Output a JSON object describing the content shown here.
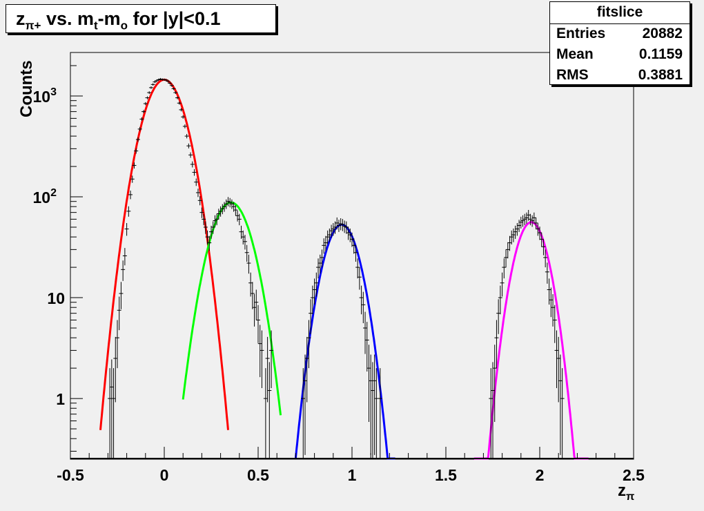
{
  "header": {
    "title_parts": {
      "z": "z",
      "z_sub": "π+",
      "vs": " vs. m",
      "m_sub": "t",
      "dash": "-m",
      "m2_sub": "o",
      "rest": " for |y|<0.1"
    }
  },
  "stats": {
    "name": "fitslice",
    "rows": [
      {
        "label": "Entries",
        "value": "20882"
      },
      {
        "label": "Mean",
        "value": "0.1159"
      },
      {
        "label": "RMS",
        "value": "0.3881"
      }
    ]
  },
  "chart_data": {
    "type": "scatter",
    "xlabel_main": "z",
    "xlabel_sub": "π",
    "ylabel": "Counts",
    "xlim": [
      -0.5,
      2.5
    ],
    "ylim": [
      0.25,
      2700
    ],
    "yscale": "log",
    "grid": false,
    "x_ticks": [
      {
        "v": -0.5,
        "label": "-0.5"
      },
      {
        "v": 0,
        "label": "0"
      },
      {
        "v": 0.5,
        "label": "0.5"
      },
      {
        "v": 1,
        "label": "1"
      },
      {
        "v": 1.5,
        "label": "1.5"
      },
      {
        "v": 2,
        "label": "2"
      },
      {
        "v": 2.5,
        "label": "2.5"
      }
    ],
    "y_ticks": [
      {
        "v": 1,
        "label": "1"
      },
      {
        "v": 10,
        "label": "10"
      },
      {
        "v": 100,
        "label": "10",
        "exp": "2"
      },
      {
        "v": 1000,
        "label": "10",
        "exp": "3"
      }
    ],
    "fits": [
      {
        "color": "#ff0000",
        "amp": 1450,
        "mean": 0.0,
        "sigma": 0.085,
        "xmin": -0.34,
        "xmax": 0.34
      },
      {
        "color": "#00ff00",
        "amp": 88,
        "mean": 0.355,
        "sigma": 0.085,
        "xmin": 0.1,
        "xmax": 0.62
      },
      {
        "color": "#0000ff",
        "amp": 53,
        "mean": 0.945,
        "sigma": 0.075,
        "xmin": 0.7,
        "xmax": 1.23
      },
      {
        "color": "#ff00ff",
        "amp": 56,
        "mean": 1.955,
        "sigma": 0.07,
        "xmin": 1.65,
        "xmax": 2.26
      }
    ],
    "points": [
      [
        -0.29,
        1.0
      ],
      [
        -0.28,
        1.3
      ],
      [
        -0.27,
        1.0
      ],
      [
        -0.26,
        2.5
      ],
      [
        -0.25,
        4.0
      ],
      [
        -0.24,
        7.5
      ],
      [
        -0.23,
        11
      ],
      [
        -0.22,
        19
      ],
      [
        -0.21,
        26
      ],
      [
        -0.2,
        48
      ],
      [
        -0.19,
        72
      ],
      [
        -0.18,
        105
      ],
      [
        -0.17,
        150
      ],
      [
        -0.16,
        205
      ],
      [
        -0.15,
        285
      ],
      [
        -0.14,
        370
      ],
      [
        -0.13,
        470
      ],
      [
        -0.12,
        590
      ],
      [
        -0.11,
        700
      ],
      [
        -0.1,
        840
      ],
      [
        -0.09,
        960
      ],
      [
        -0.08,
        1080
      ],
      [
        -0.07,
        1210
      ],
      [
        -0.06,
        1300
      ],
      [
        -0.05,
        1380
      ],
      [
        -0.04,
        1420
      ],
      [
        -0.03,
        1450
      ],
      [
        -0.02,
        1470
      ],
      [
        -0.01,
        1455
      ],
      [
        0.0,
        1450
      ],
      [
        0.01,
        1440
      ],
      [
        0.02,
        1400
      ],
      [
        0.03,
        1340
      ],
      [
        0.04,
        1270
      ],
      [
        0.05,
        1180
      ],
      [
        0.06,
        1080
      ],
      [
        0.07,
        960
      ],
      [
        0.08,
        850
      ],
      [
        0.09,
        730
      ],
      [
        0.1,
        620
      ],
      [
        0.11,
        500
      ],
      [
        0.12,
        400
      ],
      [
        0.13,
        320
      ],
      [
        0.14,
        260
      ],
      [
        0.15,
        210
      ],
      [
        0.16,
        175
      ],
      [
        0.17,
        140
      ],
      [
        0.18,
        110
      ],
      [
        0.19,
        92
      ],
      [
        0.2,
        70
      ],
      [
        0.21,
        60
      ],
      [
        0.22,
        50
      ],
      [
        0.23,
        40
      ],
      [
        0.24,
        35
      ],
      [
        0.25,
        45
      ],
      [
        0.26,
        50
      ],
      [
        0.27,
        58
      ],
      [
        0.28,
        60
      ],
      [
        0.29,
        68
      ],
      [
        0.3,
        72
      ],
      [
        0.31,
        76
      ],
      [
        0.32,
        80
      ],
      [
        0.33,
        85
      ],
      [
        0.34,
        90
      ],
      [
        0.35,
        88
      ],
      [
        0.36,
        85
      ],
      [
        0.37,
        80
      ],
      [
        0.38,
        74
      ],
      [
        0.39,
        65
      ],
      [
        0.4,
        60
      ],
      [
        0.41,
        45
      ],
      [
        0.42,
        40
      ],
      [
        0.43,
        36
      ],
      [
        0.44,
        28
      ],
      [
        0.45,
        22
      ],
      [
        0.46,
        14
      ],
      [
        0.47,
        11
      ],
      [
        0.48,
        8
      ],
      [
        0.49,
        9
      ],
      [
        0.5,
        6
      ],
      [
        0.51,
        3.5
      ],
      [
        0.52,
        3.0
      ],
      [
        0.54,
        1.0
      ],
      [
        0.55,
        2.5
      ],
      [
        0.56,
        1.2
      ],
      [
        0.57,
        3.0
      ],
      [
        0.74,
        1.0
      ],
      [
        0.75,
        1.5
      ],
      [
        0.76,
        2.5
      ],
      [
        0.77,
        4.0
      ],
      [
        0.78,
        7.0
      ],
      [
        0.79,
        10
      ],
      [
        0.8,
        12
      ],
      [
        0.81,
        14
      ],
      [
        0.82,
        20
      ],
      [
        0.83,
        22
      ],
      [
        0.84,
        25
      ],
      [
        0.85,
        33
      ],
      [
        0.86,
        35
      ],
      [
        0.87,
        40
      ],
      [
        0.88,
        42
      ],
      [
        0.89,
        46
      ],
      [
        0.9,
        48
      ],
      [
        0.91,
        50
      ],
      [
        0.92,
        55
      ],
      [
        0.93,
        52
      ],
      [
        0.94,
        54
      ],
      [
        0.95,
        53
      ],
      [
        0.96,
        51
      ],
      [
        0.97,
        50
      ],
      [
        0.98,
        44
      ],
      [
        0.99,
        42
      ],
      [
        1.0,
        38
      ],
      [
        1.01,
        33
      ],
      [
        1.02,
        28
      ],
      [
        1.03,
        20
      ],
      [
        1.04,
        16
      ],
      [
        1.05,
        10
      ],
      [
        1.06,
        8.5
      ],
      [
        1.07,
        5.0
      ],
      [
        1.08,
        3.8
      ],
      [
        1.09,
        2.0
      ],
      [
        1.1,
        1.5
      ],
      [
        1.11,
        1.2
      ],
      [
        1.12,
        1.5
      ],
      [
        1.13,
        1.0
      ],
      [
        1.15,
        1.0
      ],
      [
        1.74,
        1.0
      ],
      [
        1.75,
        1.2
      ],
      [
        1.76,
        2.0
      ],
      [
        1.77,
        4.0
      ],
      [
        1.78,
        7.0
      ],
      [
        1.79,
        10
      ],
      [
        1.8,
        14
      ],
      [
        1.81,
        20
      ],
      [
        1.82,
        25
      ],
      [
        1.83,
        30
      ],
      [
        1.84,
        35
      ],
      [
        1.85,
        40
      ],
      [
        1.86,
        42
      ],
      [
        1.87,
        45
      ],
      [
        1.88,
        48
      ],
      [
        1.89,
        52
      ],
      [
        1.9,
        56
      ],
      [
        1.91,
        58
      ],
      [
        1.92,
        60
      ],
      [
        1.93,
        62
      ],
      [
        1.94,
        66
      ],
      [
        1.95,
        60
      ],
      [
        1.96,
        58
      ],
      [
        1.97,
        62
      ],
      [
        1.98,
        55
      ],
      [
        1.99,
        48
      ],
      [
        2.0,
        44
      ],
      [
        2.01,
        38
      ],
      [
        2.02,
        32
      ],
      [
        2.03,
        25
      ],
      [
        2.04,
        18
      ],
      [
        2.05,
        12
      ],
      [
        2.06,
        9.5
      ],
      [
        2.07,
        8.0
      ],
      [
        2.08,
        6.0
      ],
      [
        2.09,
        3.0
      ],
      [
        2.1,
        2.5
      ],
      [
        2.11,
        1.5
      ],
      [
        2.12,
        1.0
      ]
    ]
  }
}
